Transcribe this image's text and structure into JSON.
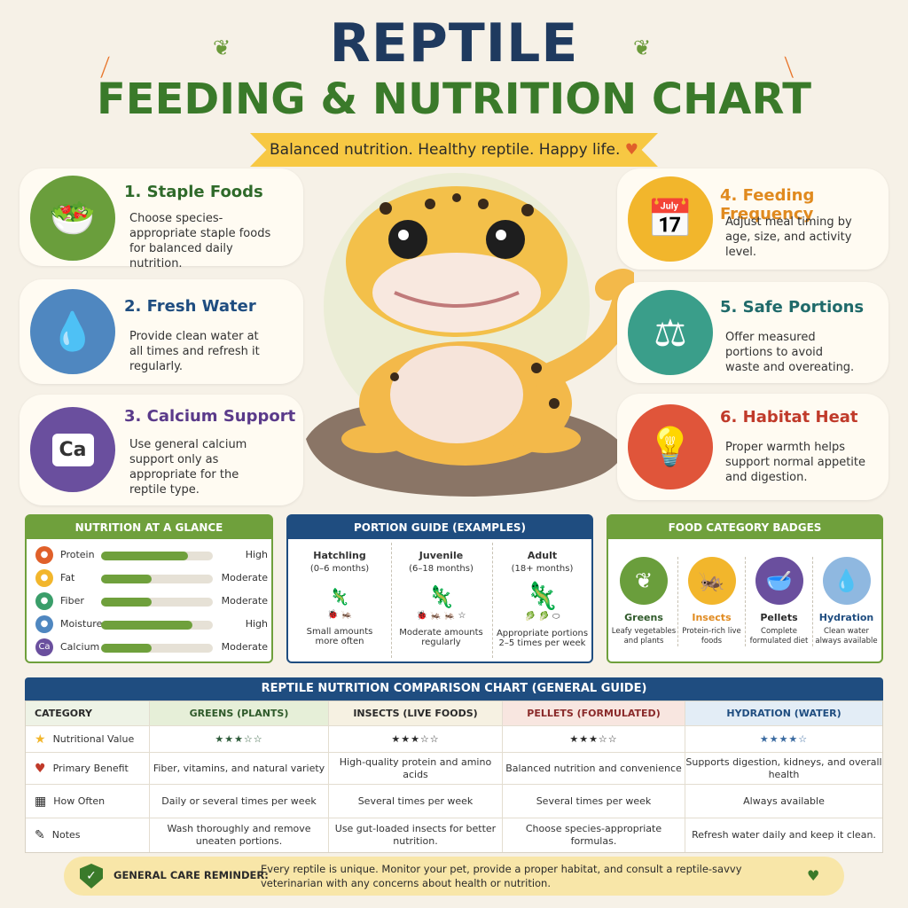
{
  "header": {
    "title_line1": "REPTILE",
    "title_line2": "FEEDING & NUTRITION CHART",
    "tagline": "Balanced nutrition. Healthy reptile. Happy life.",
    "tagline_heart": "♥"
  },
  "cards": [
    {
      "title": "1. Staple Foods",
      "desc": "Choose species-appropriate staple foods for balanced daily nutrition.",
      "icon": "salad-bowl-icon",
      "color": "#6a9e3c",
      "title_color": "#2f6a2a"
    },
    {
      "title": "2. Fresh Water",
      "desc": "Provide clean water at all times and refresh it regularly.",
      "icon": "water-bowl-icon",
      "color": "#4f87c0",
      "title_color": "#1f4d80"
    },
    {
      "title": "3. Calcium Support",
      "desc": "Use general calcium support only as appropriate for the reptile type.",
      "icon": "calcium-jar-icon",
      "color": "#6a4f9e",
      "title_color": "#5a3a8a",
      "icon_text": "Ca"
    },
    {
      "title": "4. Feeding Frequency",
      "desc": "Adjust meal timing by age, size, and activity level.",
      "icon": "calendar-clock-icon",
      "color": "#f2b62c",
      "title_color": "#e08a1f"
    },
    {
      "title": "5. Safe Portions",
      "desc": "Offer measured portions to avoid waste and overeating.",
      "icon": "kitchen-scale-icon",
      "color": "#3a9e8a",
      "title_color": "#1f6a6a"
    },
    {
      "title": "6. Habitat Heat",
      "desc": "Proper warmth helps support normal appetite and digestion.",
      "icon": "heat-lamp-icon",
      "color": "#e0553a",
      "title_color": "#c03a2a"
    }
  ],
  "glance": {
    "title": "NUTRITION AT A GLANCE",
    "rows": [
      {
        "label": "Protein",
        "level": "High",
        "fill": 0.78,
        "color": "#e0602a"
      },
      {
        "label": "Fat",
        "level": "Moderate",
        "fill": 0.45,
        "color": "#f2b62c"
      },
      {
        "label": "Fiber",
        "level": "Moderate",
        "fill": 0.45,
        "color": "#3a9e6a"
      },
      {
        "label": "Moisture",
        "level": "High",
        "fill": 0.82,
        "color": "#4f87c0"
      },
      {
        "label": "Calcium",
        "level": "Moderate",
        "fill": 0.45,
        "color": "#6a4f9e",
        "icon_text": "Ca"
      }
    ]
  },
  "portion": {
    "title": "PORTION GUIDE (EXAMPLES)",
    "cols": [
      {
        "name": "Hatchling",
        "age": "(0–6 months)",
        "note": "Small amounts more often"
      },
      {
        "name": "Juvenile",
        "age": "(6–18 months)",
        "note": "Moderate amounts regularly"
      },
      {
        "name": "Adult",
        "age": "(18+ months)",
        "note": "Appropriate portions 2–5 times per week"
      }
    ]
  },
  "badges": {
    "title": "FOOD CATEGORY BADGES",
    "items": [
      {
        "name": "Greens",
        "desc": "Leafy vegetables and plants",
        "color": "#6a9e3c",
        "name_color": "#2f5a2a"
      },
      {
        "name": "Insects",
        "desc": "Protein-rich live foods",
        "color": "#f2b62c",
        "name_color": "#e08a1f"
      },
      {
        "name": "Pellets",
        "desc": "Complete formulated diet",
        "color": "#6a4f9e",
        "name_color": "#2a2a2a"
      },
      {
        "name": "Hydration",
        "desc": "Clean water always available",
        "color": "#8fb8e0",
        "name_color": "#1f4d80"
      }
    ]
  },
  "table": {
    "title": "REPTILE NUTRITION COMPARISON CHART (GENERAL GUIDE)",
    "headers": [
      "CATEGORY",
      "GREENS (PLANTS)",
      "INSECTS (LIVE FOODS)",
      "PELLETS (FORMULATED)",
      "HYDRATION (WATER)"
    ],
    "header_colors": [
      "#eef3e6",
      "#e6efd8",
      "#f6f1e2",
      "#f8e6e0",
      "#e3edf6"
    ],
    "rows": [
      {
        "label": "Nutritional Value",
        "icon": "star-icon",
        "cells": [
          "★★★☆☆",
          "★★★☆☆",
          "★★★☆☆",
          "★★★★☆"
        ]
      },
      {
        "label": "Primary Benefit",
        "icon": "heart-icon",
        "cells": [
          "Fiber, vitamins, and natural variety",
          "High-quality protein and amino acids",
          "Balanced nutrition and convenience",
          "Supports digestion, kidneys, and overall health"
        ]
      },
      {
        "label": "How Often",
        "icon": "calendar-icon",
        "cells": [
          "Daily or several times per week",
          "Several times per week",
          "Several times per week",
          "Always available"
        ]
      },
      {
        "label": "Notes",
        "icon": "notes-icon",
        "cells": [
          "Wash thoroughly and remove uneaten portions.",
          "Use gut-loaded insects for better nutrition.",
          "Choose species-appropriate formulas.",
          "Refresh water daily and keep it clean."
        ]
      }
    ]
  },
  "reminder": {
    "label": "GENERAL CARE REMINDER:",
    "text": "Every reptile is unique. Monitor your pet, provide a proper habitat, and consult a reptile-savvy veterinarian with any concerns about health or nutrition.",
    "heart": "♥"
  }
}
